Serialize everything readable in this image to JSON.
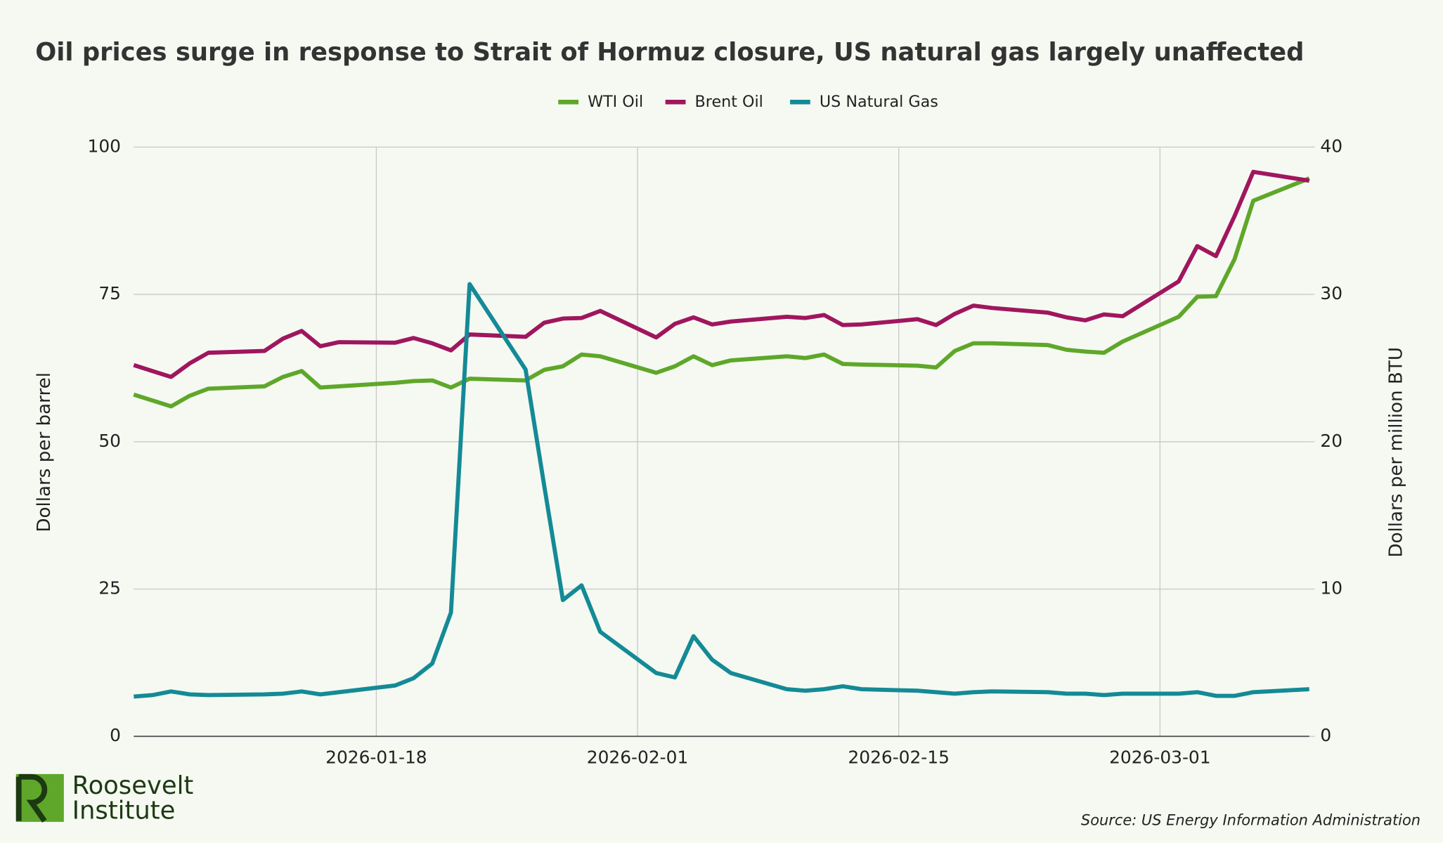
{
  "chart_data": {
    "type": "line",
    "title": "Oil prices surge in response to Strait of Hormuz closure, US natural gas largely unaffected",
    "y_label": "Dollars per barrel",
    "y2_label": "Dollars per million BTU",
    "source": "Source: US Energy Information Administration",
    "logo": [
      "Roosevelt",
      "Institute"
    ],
    "x": [
      "2026-01-05",
      "2026-01-06",
      "2026-01-07",
      "2026-01-08",
      "2026-01-09",
      "2026-01-12",
      "2026-01-13",
      "2026-01-14",
      "2026-01-15",
      "2026-01-16",
      "2026-01-19",
      "2026-01-20",
      "2026-01-21",
      "2026-01-22",
      "2026-01-23",
      "2026-01-26",
      "2026-01-27",
      "2026-01-28",
      "2026-01-29",
      "2026-01-30",
      "2026-02-02",
      "2026-02-03",
      "2026-02-04",
      "2026-02-05",
      "2026-02-06",
      "2026-02-09",
      "2026-02-10",
      "2026-02-11",
      "2026-02-12",
      "2026-02-13",
      "2026-02-16",
      "2026-02-17",
      "2026-02-18",
      "2026-02-19",
      "2026-02-20",
      "2026-02-23",
      "2026-02-24",
      "2026-02-25",
      "2026-02-26",
      "2026-02-27",
      "2026-03-02",
      "2026-03-03",
      "2026-03-04",
      "2026-03-05",
      "2026-03-06",
      "2026-03-09"
    ],
    "series": [
      {
        "name": "WTI Oil",
        "color": "#5fa72a",
        "values": [
          58,
          57,
          56,
          57.8,
          59,
          59.4,
          61,
          62,
          59.2,
          59.4,
          60,
          60.3,
          60.4,
          59.2,
          60.7,
          60.4,
          62.2,
          62.8,
          64.8,
          64.5,
          61.7,
          62.8,
          64.5,
          63,
          63.8,
          64.5,
          64.2,
          64.8,
          63.2,
          63.1,
          62.9,
          62.6,
          65.4,
          66.7,
          66.7,
          66.4,
          65.6,
          65.3,
          65.1,
          67,
          71.2,
          74.6,
          74.7,
          81,
          90.9,
          94.7
        ]
      },
      {
        "name": "Brent Oil",
        "color": "#a0165e",
        "values": [
          63,
          62,
          61,
          63.3,
          65.1,
          65.4,
          67.5,
          68.8,
          66.2,
          66.9,
          66.8,
          67.6,
          66.7,
          65.5,
          68.2,
          67.8,
          70.2,
          70.9,
          71,
          72.2,
          67.7,
          70,
          71.1,
          69.9,
          70.4,
          71.2,
          71,
          71.5,
          69.8,
          69.9,
          70.8,
          69.8,
          71.7,
          73.1,
          72.7,
          71.9,
          71.1,
          70.6,
          71.6,
          71.3,
          77.2,
          83.2,
          81.5,
          88.3,
          95.8,
          94.3
        ]
      },
      {
        "name": "US Natural Gas",
        "color": "#148a96",
        "axis": "y2",
        "values": [
          2.7,
          2.8,
          3.05,
          2.85,
          2.8,
          2.85,
          2.9,
          3.05,
          2.85,
          3.0,
          3.45,
          3.95,
          4.95,
          8.4,
          30.7,
          24.9,
          17,
          9.25,
          10.25,
          7.1,
          4.3,
          4.0,
          6.8,
          5.2,
          4.3,
          3.2,
          3.1,
          3.2,
          3.4,
          3.2,
          3.1,
          3.0,
          2.9,
          3.0,
          3.05,
          3.0,
          2.9,
          2.9,
          2.8,
          2.9,
          2.9,
          3.0,
          2.75,
          2.75,
          3.0,
          3.2
        ]
      }
    ],
    "xlim": [
      "2026-01-05",
      "2026-03-09"
    ],
    "xticks": [
      "2026-01-18",
      "2026-02-01",
      "2026-02-15",
      "2026-03-01"
    ],
    "ylim": [
      0,
      100
    ],
    "yticks": [
      0,
      25,
      50,
      75,
      100
    ],
    "y2lim": [
      0,
      40
    ],
    "y2ticks": [
      0,
      10,
      20,
      30,
      40
    ],
    "grid": true,
    "legend": "top"
  }
}
